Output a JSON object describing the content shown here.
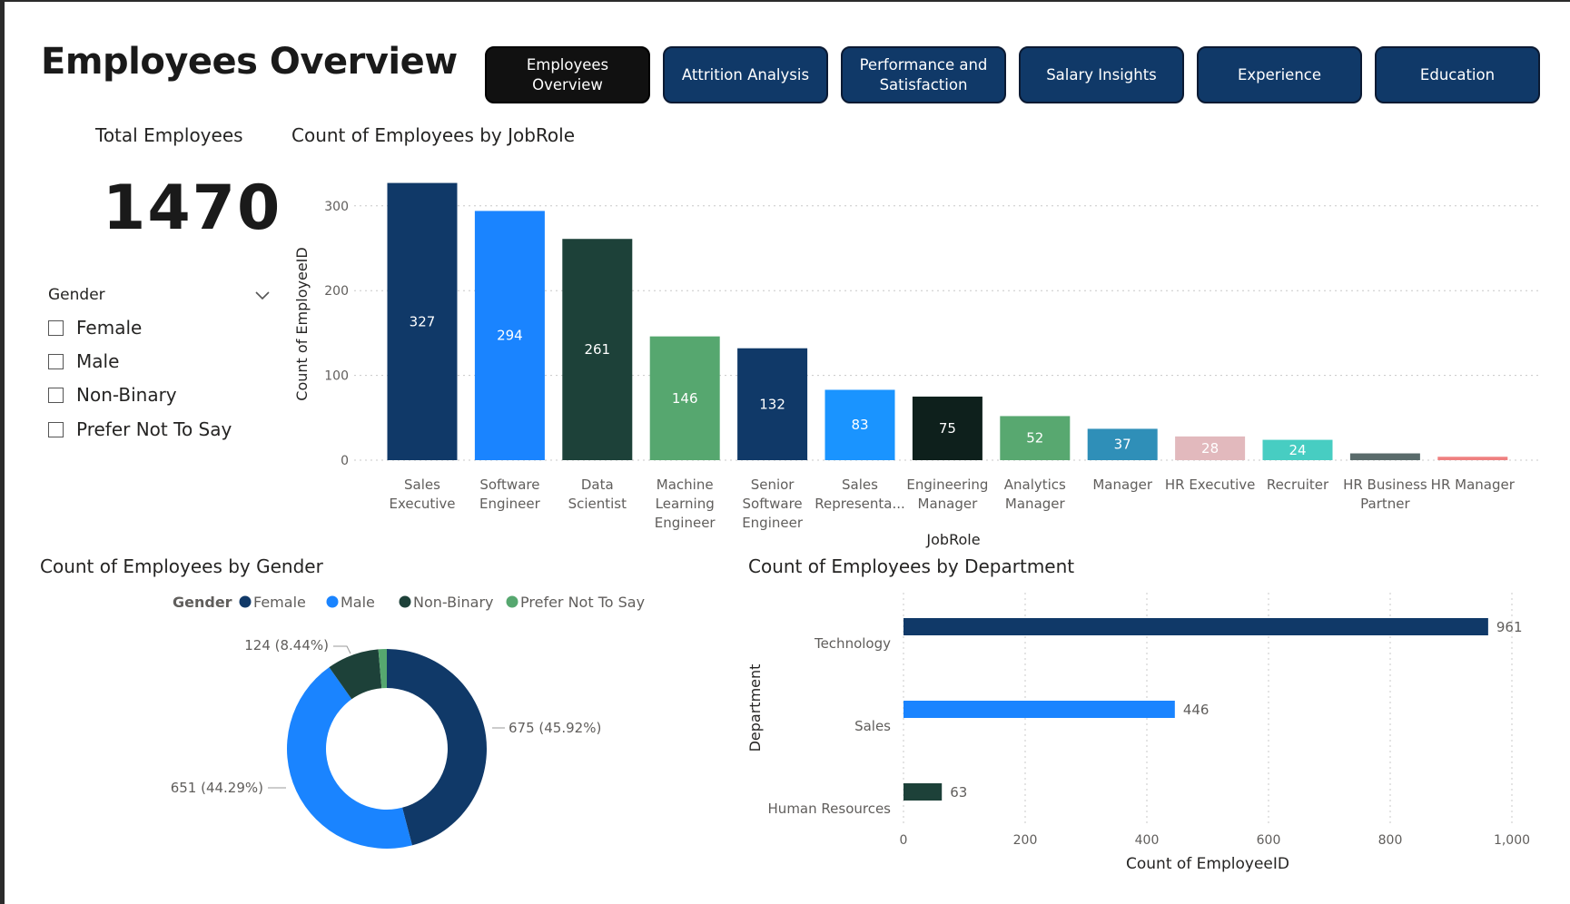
{
  "page": {
    "title": "Employees Overview"
  },
  "nav": {
    "buttons": [
      {
        "label": "Employees Overview",
        "active": true
      },
      {
        "label": "Attrition Analysis",
        "active": false
      },
      {
        "label": "Performance and Satisfaction",
        "active": false
      },
      {
        "label": "Salary Insights",
        "active": false
      },
      {
        "label": "Experience",
        "active": false
      },
      {
        "label": "Education",
        "active": false
      }
    ]
  },
  "kpi": {
    "label": "Total Employees",
    "value": "1470"
  },
  "slicer": {
    "title": "Gender",
    "icon": "chevron-down-icon",
    "options": [
      "Female",
      "Male",
      "Non-Binary",
      "Prefer Not To Say"
    ]
  },
  "colors": {
    "nav_button": "#103968",
    "nav_button_active": "#111111",
    "dark_blue": "#103968",
    "bright_blue": "#1a84ff",
    "dark_green": "#1d4139"
  },
  "chart_data": [
    {
      "type": "bar",
      "title": "Count of Employees by JobRole",
      "xlabel": "JobRole",
      "ylabel": "Count of EmployeeID",
      "ylim": [
        0,
        330
      ],
      "yticks": [
        0,
        100,
        200,
        300
      ],
      "grid": true,
      "categories": [
        "Sales Executive",
        "Software Engineer",
        "Data Scientist",
        "Machine Learning Engineer",
        "Senior Software Engineer",
        "Sales Representa...",
        "Engineering Manager",
        "Analytics Manager",
        "Manager",
        "HR Executive",
        "Recruiter",
        "HR Business Partner",
        "HR Manager"
      ],
      "values": [
        327,
        294,
        261,
        146,
        132,
        83,
        75,
        52,
        37,
        28,
        24,
        8,
        4
      ],
      "labels": [
        "327",
        "294",
        "261",
        "146",
        "132",
        "83",
        "75",
        "52",
        "37",
        "28",
        "24",
        "",
        ""
      ],
      "colors": [
        "#103968",
        "#1a84ff",
        "#1d4139",
        "#56a76f",
        "#103968",
        "#1a94ff",
        "#0e201c",
        "#58a870",
        "#2f8fb8",
        "#e2b9bd",
        "#47cdc2",
        "#5a6b6b",
        "#ef8080"
      ]
    },
    {
      "type": "pie",
      "title": "Count of Employees by Gender",
      "legend_title": "Gender",
      "legend_position": "top",
      "categories": [
        "Female",
        "Male",
        "Non-Binary",
        "Prefer Not To Say"
      ],
      "values": [
        675,
        651,
        124,
        20
      ],
      "labels": [
        "675 (45.92%)",
        "651 (44.29%)",
        "124 (8.44%)",
        ""
      ],
      "colors": [
        "#103968",
        "#1a84ff",
        "#1d4139",
        "#56a76f"
      ]
    },
    {
      "type": "bar",
      "orientation": "horizontal",
      "title": "Count of Employees by Department",
      "xlabel": "Count of EmployeeID",
      "ylabel": "Department",
      "xlim": [
        0,
        1000
      ],
      "xticks": [
        0,
        200,
        400,
        600,
        800,
        1000
      ],
      "xtick_labels": [
        "0",
        "200",
        "400",
        "600",
        "800",
        "1,000"
      ],
      "grid": true,
      "categories": [
        "Technology",
        "Sales",
        "Human Resources"
      ],
      "values": [
        961,
        446,
        63
      ],
      "labels": [
        "961",
        "446",
        "63"
      ],
      "colors": [
        "#103968",
        "#1a84ff",
        "#1d4139"
      ]
    }
  ]
}
